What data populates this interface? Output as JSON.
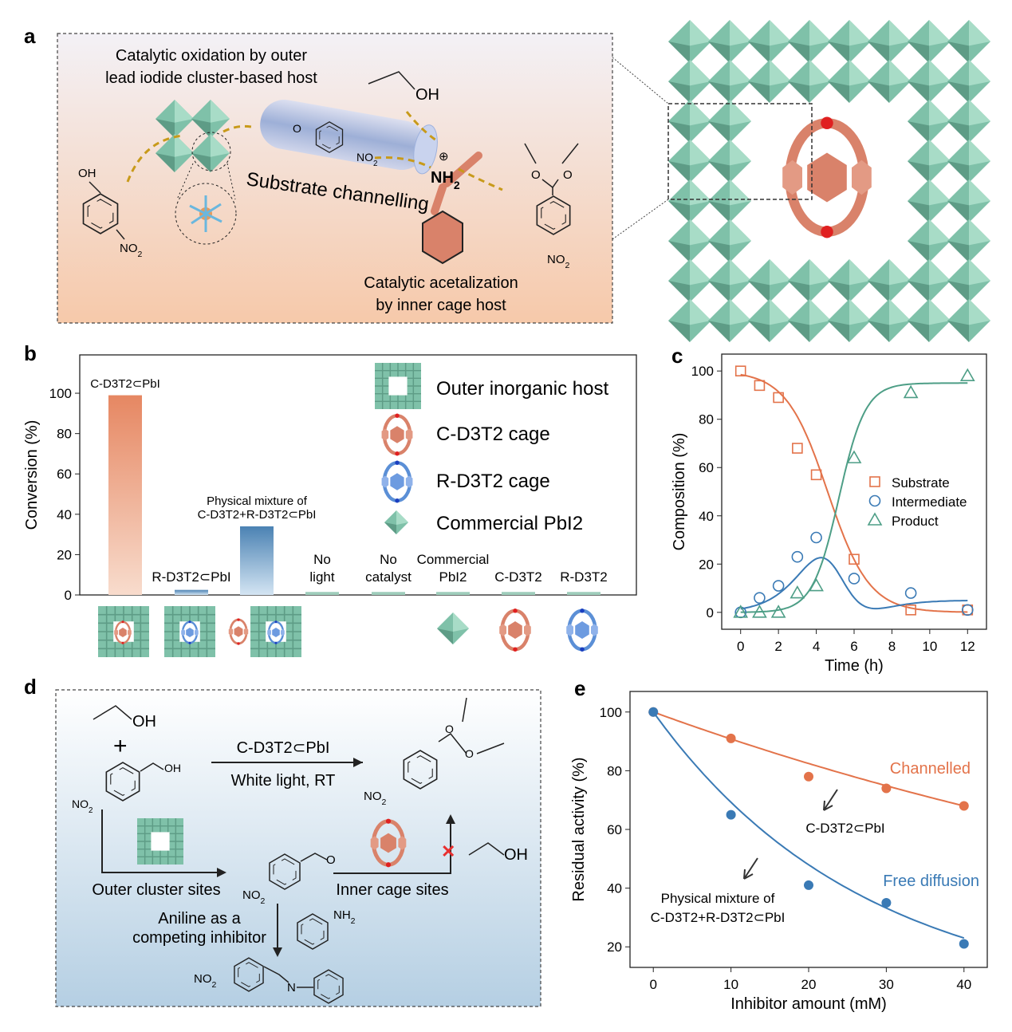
{
  "panels": {
    "a": {
      "label": "a",
      "title_line1": "Catalytic oxidation by outer",
      "title_line2": "lead iodide cluster-based host",
      "ethanol_oh": "OH",
      "substrate_oh": "OH",
      "substrate_no2": "NO2",
      "aldehyde_o": "O",
      "aldehyde_no2": "NO2",
      "channel_label": "Substrate channelling",
      "amine_label": "NH2",
      "plus_sign": "⊕",
      "acetal_o1": "O",
      "acetal_o2": "O",
      "product_no2": "NO2",
      "inner_line1": "Catalytic acetalization",
      "inner_line2": "by inner cage host"
    },
    "b": {
      "label": "b"
    },
    "c": {
      "label": "c"
    },
    "d": {
      "label": "d",
      "ethanol_oh": "OH",
      "plus": "+",
      "substrate_oh": "OH",
      "substrate_no2": "NO2",
      "catalyst": "C-D3T2⊂PbI",
      "conditions": "White light, RT",
      "acetal_o1": "O",
      "acetal_o2": "O",
      "acetal_no2": "NO2",
      "outer_sites": "Outer cluster sites",
      "aldehyde_o": "O",
      "aldehyde_no2": "NO2",
      "inner_sites": "Inner cage sites",
      "blocked_ethanol_oh": "OH",
      "inhibitor_line1": "Aniline as a",
      "inhibitor_line2": "competing inhibitor",
      "aniline_nh2": "NH2",
      "imine_no2": "NO2",
      "imine_n": "N",
      "blocked_mark": "✕"
    },
    "e": {
      "label": "e"
    }
  },
  "colors": {
    "orange": "#e3734a",
    "blue": "#3a7ab5",
    "green": "#4d9e86",
    "lattice_green": "#7fc1a9",
    "cage_red": "#d9826a",
    "cage_blue": "#5b8fd6"
  },
  "chart_data": [
    {
      "panel": "b",
      "type": "bar",
      "ylabel": "Conversion (%)",
      "ylim": [
        0,
        119
      ],
      "yticks": [
        0,
        20,
        40,
        60,
        80,
        100
      ],
      "categories": [
        {
          "line1": "C-D3T2⊂PbI",
          "line2": ""
        },
        {
          "line1": "R-D3T2⊂PbI",
          "line2": ""
        },
        {
          "line1": "Physical mixture of",
          "line2": "C-D3T2+R-D3T2⊂PbI"
        },
        {
          "line1": "No",
          "line2": "light"
        },
        {
          "line1": "No",
          "line2": "catalyst"
        },
        {
          "line1": "Commercial",
          "line2": "PbI2"
        },
        {
          "line1": "C-D3T2",
          "line2": ""
        },
        {
          "line1": "R-D3T2",
          "line2": ""
        }
      ],
      "values": [
        99,
        2.5,
        34,
        1.5,
        1.5,
        1.5,
        1.5,
        1.5
      ],
      "legend": [
        {
          "label": "Outer inorganic host",
          "icon": "lattice-icon"
        },
        {
          "label": "C-D3T2 cage",
          "icon": "red-cage-icon"
        },
        {
          "label": "R-D3T2 cage",
          "icon": "blue-cage-icon"
        },
        {
          "label": "Commercial PbI2",
          "icon": "octahedron-icon"
        }
      ],
      "legend_position": "top-right"
    },
    {
      "panel": "c",
      "type": "scatter",
      "xlabel": "Time (h)",
      "ylabel": "Composition (%)",
      "xlim": [
        -1,
        13
      ],
      "ylim": [
        -7,
        107
      ],
      "xticks": [
        0,
        2,
        4,
        6,
        8,
        10,
        12
      ],
      "yticks": [
        0,
        20,
        40,
        60,
        80,
        100
      ],
      "legend_position": "right",
      "series": [
        {
          "name": "Substrate",
          "marker": "square",
          "color": "#e3734a",
          "x": [
            0,
            1,
            2,
            3,
            4,
            6,
            9,
            12
          ],
          "y": [
            100,
            94,
            89,
            68,
            57,
            22,
            1,
            1
          ]
        },
        {
          "name": "Intermediate",
          "marker": "circle",
          "color": "#3a7ab5",
          "x": [
            0,
            1,
            2,
            3,
            4,
            6,
            9,
            12
          ],
          "y": [
            0,
            6,
            11,
            23,
            31,
            14,
            8,
            1
          ]
        },
        {
          "name": "Product",
          "marker": "triangle",
          "color": "#4d9e86",
          "x": [
            0,
            1,
            2,
            3,
            4,
            6,
            9,
            12
          ],
          "y": [
            0,
            0,
            0,
            8,
            11,
            64,
            91,
            98
          ]
        }
      ]
    },
    {
      "panel": "e",
      "type": "scatter",
      "xlabel": "Inhibitor amount (mM)",
      "ylabel": "Residual activity (%)",
      "xlim": [
        -3,
        43
      ],
      "ylim": [
        13,
        107
      ],
      "xticks": [
        0,
        10,
        20,
        30,
        40
      ],
      "yticks": [
        20,
        40,
        60,
        80,
        100
      ],
      "series": [
        {
          "name": "Channelled",
          "color": "#e3734a",
          "x": [
            0,
            10,
            20,
            30,
            40
          ],
          "y": [
            100,
            91,
            78,
            74,
            68
          ]
        },
        {
          "name": "Free diffusion",
          "color": "#3a7ab5",
          "x": [
            0,
            10,
            20,
            30,
            40
          ],
          "y": [
            100,
            65,
            41,
            35,
            21
          ]
        }
      ],
      "annotations": [
        "C-D3T2⊂PbI",
        "Physical mixture of",
        "C-D3T2+R-D3T2⊂PbI"
      ]
    }
  ]
}
